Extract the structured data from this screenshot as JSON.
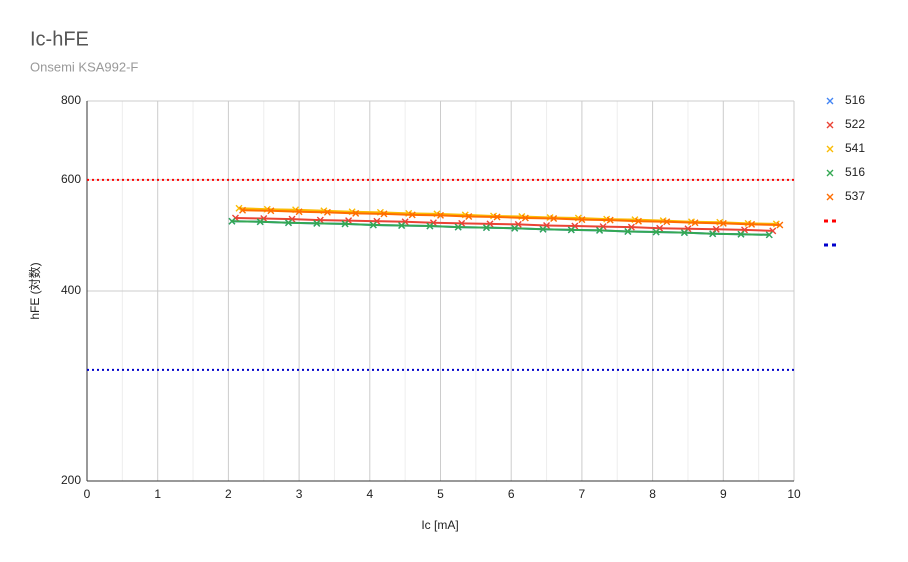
{
  "chart_data": {
    "type": "line",
    "title": "Ic-hFE",
    "subtitle": "Onsemi KSA992-F",
    "x_label": "Ic [mA]",
    "y_label": "hFE (対数)",
    "xlim": [
      0,
      10
    ],
    "xticks": [
      0,
      1,
      2,
      3,
      4,
      5,
      6,
      7,
      8,
      9,
      10
    ],
    "ylim": [
      200,
      800
    ],
    "yticks": [
      200,
      400,
      600,
      800
    ],
    "y_log": true,
    "grid": true,
    "legend": "right",
    "series": [
      {
        "name": "516",
        "color": "#4285f4",
        "x": [
          2.05,
          2.45,
          2.85,
          3.25,
          3.65,
          4.05,
          4.45,
          4.85,
          5.25,
          5.65,
          6.05,
          6.45,
          6.85,
          7.25,
          7.65,
          8.05,
          8.45,
          8.85,
          9.25,
          9.65
        ],
        "values": [
          516,
          515,
          513,
          512,
          511,
          509,
          508,
          507,
          505,
          504,
          503,
          501,
          500,
          499,
          497,
          496,
          495,
          493,
          492,
          491
        ]
      },
      {
        "name": "522",
        "color": "#ea4335",
        "x": [
          2.1,
          2.5,
          2.9,
          3.3,
          3.7,
          4.1,
          4.5,
          4.9,
          5.3,
          5.7,
          6.1,
          6.5,
          6.9,
          7.3,
          7.7,
          8.1,
          8.5,
          8.9,
          9.3,
          9.7
        ],
        "values": [
          522,
          521,
          520,
          518,
          517,
          516,
          515,
          513,
          512,
          511,
          510,
          508,
          507,
          506,
          505,
          503,
          502,
          501,
          500,
          498
        ]
      },
      {
        "name": "541",
        "color": "#fbbc04",
        "x": [
          2.15,
          2.55,
          2.95,
          3.35,
          3.75,
          4.15,
          4.55,
          4.95,
          5.35,
          5.75,
          6.15,
          6.55,
          6.95,
          7.35,
          7.75,
          8.15,
          8.55,
          8.95,
          9.35,
          9.75
        ],
        "values": [
          541,
          539,
          538,
          536,
          534,
          533,
          531,
          530,
          528,
          526,
          525,
          523,
          522,
          520,
          519,
          517,
          515,
          514,
          512,
          511
        ]
      },
      {
        "name": "516",
        "color": "#34a853",
        "x": [
          2.05,
          2.45,
          2.85,
          3.25,
          3.65,
          4.05,
          4.45,
          4.85,
          5.25,
          5.65,
          6.05,
          6.45,
          6.85,
          7.25,
          7.65,
          8.05,
          8.45,
          8.85,
          9.25,
          9.65
        ],
        "values": [
          516,
          515,
          513,
          512,
          511,
          509,
          508,
          507,
          505,
          504,
          503,
          501,
          500,
          499,
          497,
          496,
          495,
          493,
          492,
          491
        ]
      },
      {
        "name": "537",
        "color": "#ff6d01",
        "x": [
          2.2,
          2.6,
          3.0,
          3.4,
          3.8,
          4.2,
          4.6,
          5.0,
          5.4,
          5.8,
          6.2,
          6.6,
          7.0,
          7.4,
          7.8,
          8.2,
          8.6,
          9.0,
          9.4,
          9.8
        ],
        "values": [
          537,
          536,
          534,
          533,
          531,
          530,
          528,
          527,
          525,
          524,
          522,
          521,
          519,
          518,
          516,
          515,
          513,
          512,
          510,
          509
        ]
      }
    ],
    "reference_lines": [
      {
        "value": 600,
        "color": "#ff0000"
      },
      {
        "value": 300,
        "color": "#0000cc"
      }
    ]
  }
}
